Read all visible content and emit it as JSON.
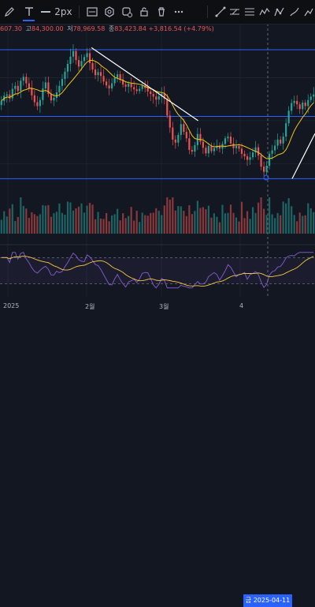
{
  "toolbar": {
    "tools": [
      {
        "name": "pencil-icon"
      },
      {
        "name": "text-tool-icon"
      },
      {
        "name": "line-width-icon",
        "label": "2px"
      },
      {
        "name": "color-swatch-icon"
      },
      {
        "name": "settings-icon"
      },
      {
        "name": "alert-icon"
      },
      {
        "name": "lock-icon"
      },
      {
        "name": "trash-icon"
      },
      {
        "name": "more-icon"
      }
    ],
    "right_tools": [
      "trend-line-icon",
      "ray-icon",
      "fib-icon",
      "pattern-icon",
      "measure-icon",
      "brush-icon",
      "cursor-icon"
    ]
  },
  "ohlc": {
    "open_fragment": "607.30",
    "high_label": "고",
    "high": "84,300.00",
    "low_label": "저",
    "low": "78,969.58",
    "close_label": "종",
    "close": "83,423.84",
    "change": "+3,816.54 (+4.79%)"
  },
  "x_axis": {
    "labels": [
      "2025",
      "2월",
      "3월",
      "4"
    ],
    "crosshair_date": "금 2025-04-11"
  },
  "colors": {
    "up": "#26a69a",
    "down": "#ef5350",
    "ma": "#f0c419",
    "rsi": "#7e57c2",
    "rsi_ma": "#f5c842",
    "hline": "#2962ff",
    "trend": "#ffffff",
    "background": "#131722"
  },
  "chart_data": {
    "type": "candlestick",
    "x_range": [
      "2024-12-15",
      "2025-04-18"
    ],
    "y_range": [
      74000,
      110000
    ],
    "horizontal_levels": [
      106500,
      91000,
      76500
    ],
    "trendlines": [
      {
        "from": [
          "2025-01-20",
          107000
        ],
        "to": [
          "2025-03-03",
          90000
        ]
      },
      {
        "from": [
          "2025-04-09",
          76500
        ],
        "to": [
          "2025-04-18",
          87000
        ]
      }
    ],
    "closes": [
      94600,
      95800,
      96100,
      95200,
      97400,
      98100,
      96900,
      99300,
      100200,
      98700,
      97600,
      95900,
      94300,
      93400,
      94800,
      97500,
      98900,
      96200,
      94700,
      95300,
      96600,
      98100,
      99700,
      101400,
      103200,
      104900,
      106200,
      104100,
      102600,
      103900,
      104800,
      105700,
      103400,
      101900,
      100600,
      101300,
      100400,
      99100,
      98200,
      97500,
      98700,
      99900,
      100800,
      99600,
      98400,
      97900,
      98600,
      97800,
      97300,
      96900,
      97400,
      98200,
      97600,
      96800,
      96200,
      95600,
      94900,
      95700,
      96300,
      95100,
      91200,
      88400,
      85600,
      84900,
      86700,
      89200,
      87400,
      85900,
      83200,
      82800,
      84300,
      86900,
      85100,
      83700,
      82400,
      84100,
      82900,
      83600,
      84200,
      83500,
      84600,
      85900,
      86300,
      84700,
      83600,
      84100,
      83500,
      82300,
      81700,
      80900,
      81500,
      82600,
      83800,
      81900,
      79300,
      78100,
      79500,
      82300,
      83100,
      84200,
      85600,
      84700,
      86300,
      89400,
      92300,
      94100,
      94600,
      93800,
      92700,
      94200,
      93400,
      94800,
      95600,
      96100
    ]
  },
  "rsi_data": {
    "y_range": [
      20,
      80
    ],
    "levels": [
      70,
      30
    ]
  }
}
